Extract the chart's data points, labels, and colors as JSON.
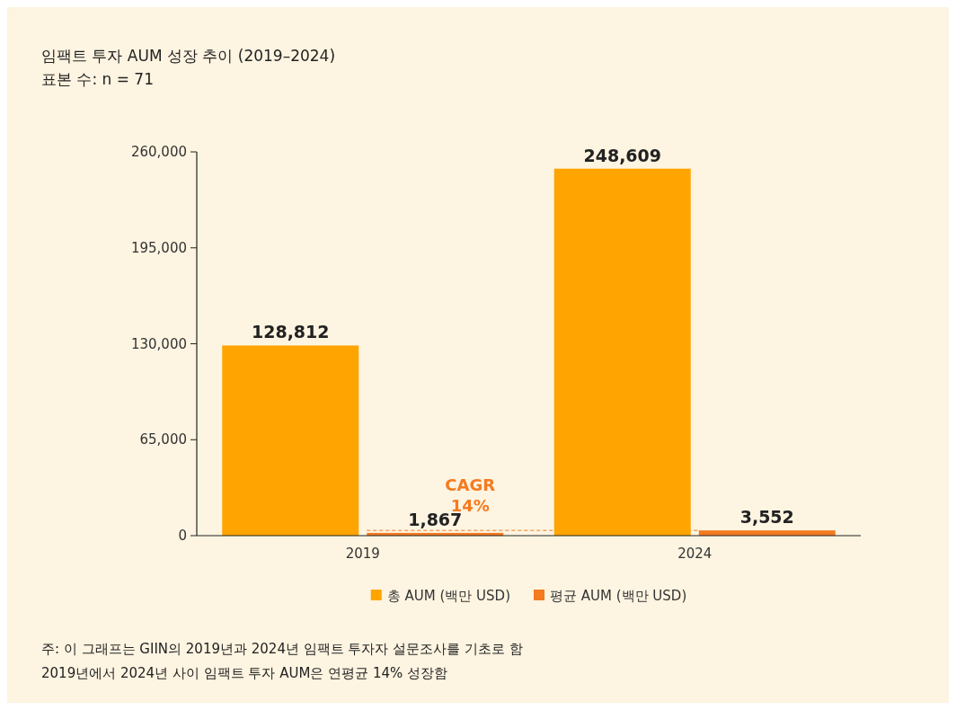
{
  "chart_data": {
    "type": "bar",
    "title": "임팩트 투자 AUM 성장 추이 (2019–2024)",
    "subtitle": "표본 수: n = 71",
    "categories": [
      "2019",
      "2024"
    ],
    "series": [
      {
        "name": "총 AUM (백만 USD)",
        "color": "#ffa400",
        "values": [
          128812,
          248609
        ],
        "value_labels": [
          "128,812",
          "248,609"
        ]
      },
      {
        "name": "평균 AUM (백만 USD)",
        "color": "#f47b20",
        "values": [
          1867,
          3552
        ],
        "value_labels": [
          "1,867",
          "3,552"
        ]
      }
    ],
    "ylim": [
      0,
      260000
    ],
    "yticks": [
      {
        "value": 0,
        "label": "0"
      },
      {
        "value": 65000,
        "label": "65,000"
      },
      {
        "value": 130000,
        "label": "130,000"
      },
      {
        "value": 195000,
        "label": "195,000"
      },
      {
        "value": 260000,
        "label": "260,000"
      }
    ],
    "grid": false,
    "legend": "bottom",
    "ref_lines": [
      {
        "axis": "y",
        "value": 3552,
        "label": "CAGR 14%",
        "color": "#f47b20",
        "line_style": "dashed"
      }
    ],
    "annotations": [
      "주: 이 그래프는 GIIN의 2019년과 2024년 임팩트 투자자 설문조사를 기초로 함",
      "2019년에서 2024년 사이 임팩트 투자 AUM은 연평균 14% 성장함"
    ]
  }
}
